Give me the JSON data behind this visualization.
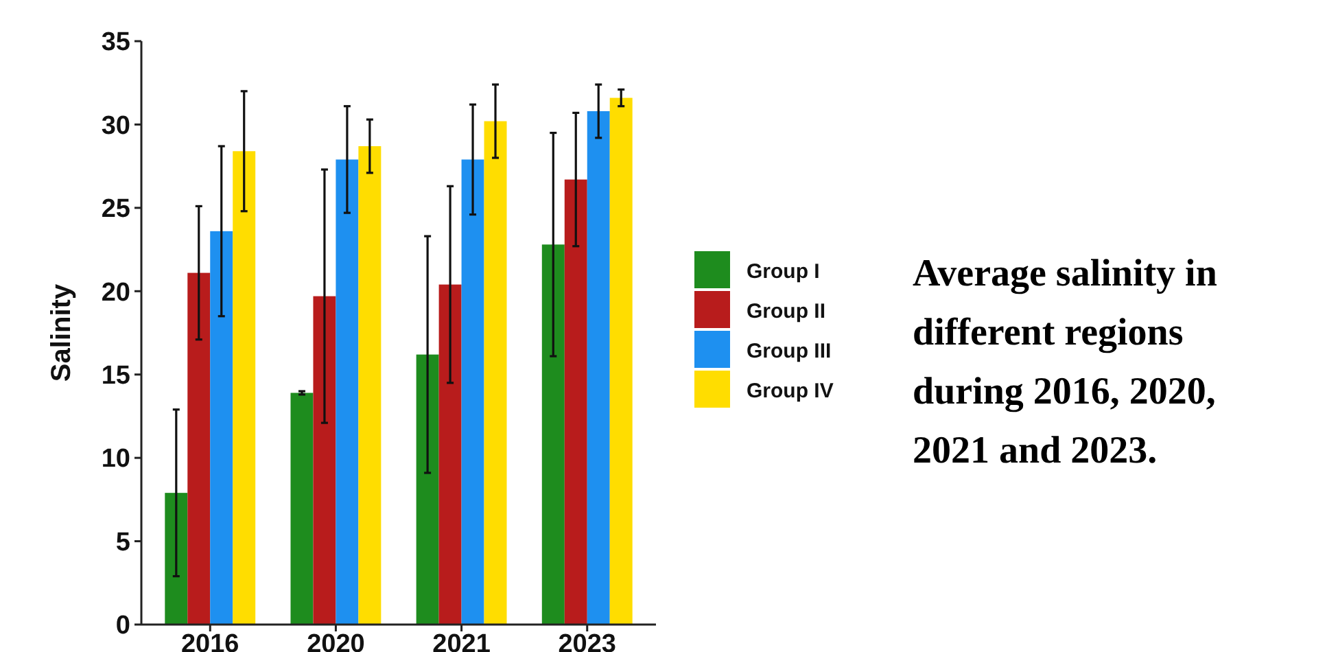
{
  "chart_data": {
    "type": "bar",
    "title": "Average salinity in different regions during 2016, 2020, 2021 and 2023.",
    "ylabel": "Salinity",
    "categories": [
      "2016",
      "2020",
      "2021",
      "2023"
    ],
    "series": [
      {
        "name": "Group I",
        "color": "#1e8c1e",
        "values": [
          7.9,
          13.9,
          16.2,
          22.8
        ],
        "errors": [
          5,
          0.1,
          7.1,
          6.7
        ]
      },
      {
        "name": "Group II",
        "color": "#b81c1c",
        "values": [
          21.1,
          19.7,
          20.4,
          26.7
        ],
        "errors": [
          4,
          7.6,
          5.9,
          4
        ]
      },
      {
        "name": "Group III",
        "color": "#1e90f0",
        "values": [
          23.6,
          27.9,
          27.9,
          30.8
        ],
        "errors": [
          5.1,
          3.2,
          3.3,
          1.6
        ]
      },
      {
        "name": "Group IV",
        "color": "#ffdd00",
        "values": [
          28.4,
          28.7,
          30.2,
          31.6
        ],
        "errors": [
          3.6,
          1.6,
          2.2,
          0.5
        ]
      }
    ],
    "ylim": [
      0,
      35
    ],
    "yticks": [
      0,
      5,
      10,
      15,
      20,
      25,
      30,
      35
    ],
    "grid": false,
    "legend": "right"
  }
}
